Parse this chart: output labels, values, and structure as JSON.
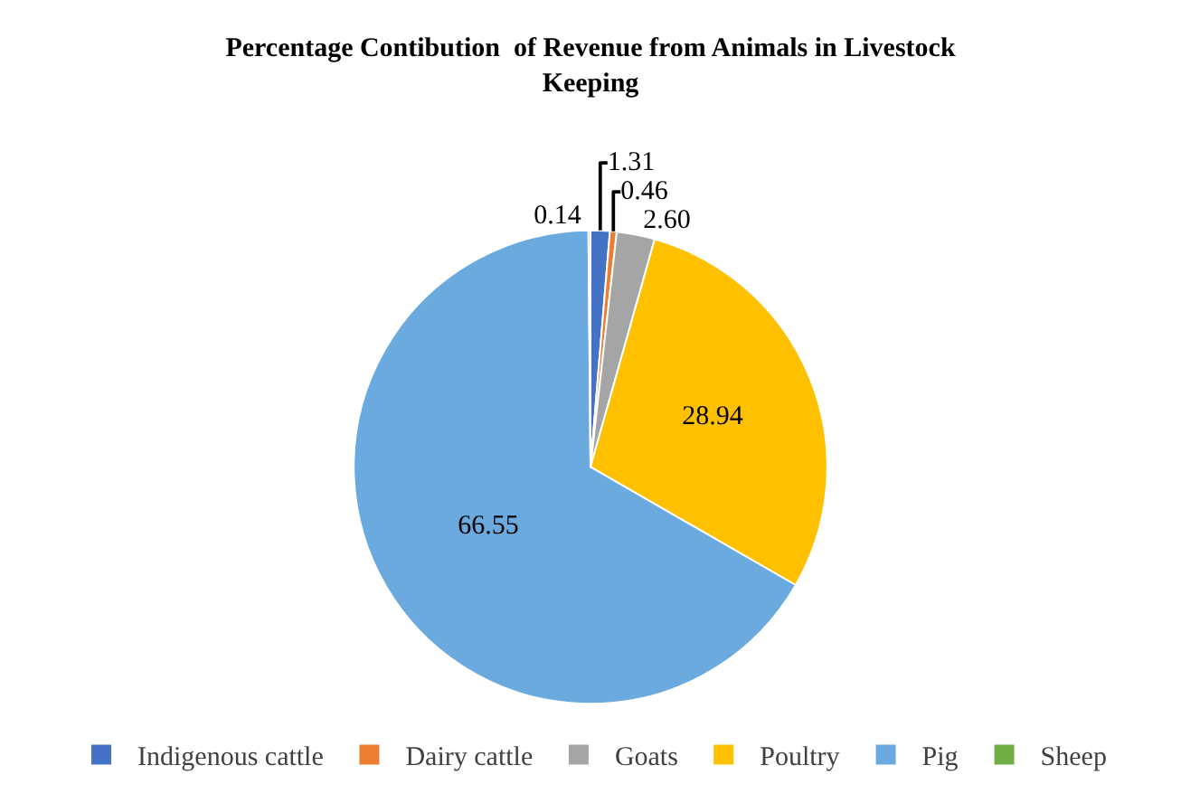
{
  "chart_data": {
    "type": "pie",
    "title": "Percentage Contibution  of Revenue from Animals in Livestock\nKeeping",
    "categories": [
      "Indigenous cattle",
      "Dairy cattle",
      "Goats",
      "Poultry",
      "Pig",
      "Sheep"
    ],
    "values": [
      1.31,
      0.46,
      2.6,
      28.94,
      66.55,
      0.14
    ],
    "value_labels": [
      "1.31",
      "0.46",
      "2.60",
      "28.94",
      "66.55",
      "0.14"
    ],
    "colors": [
      "#4472c4",
      "#ed7d31",
      "#a5a5a5",
      "#ffc000",
      "#6aaadf",
      "#70ad47"
    ],
    "legend": "bottom"
  }
}
